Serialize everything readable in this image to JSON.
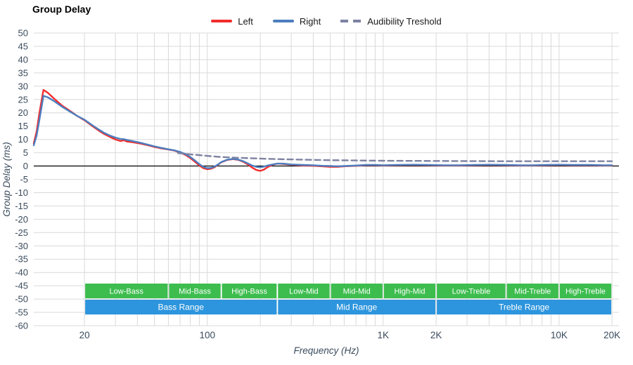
{
  "chart": {
    "title": "Group Delay",
    "xlabel": "Frequency (Hz)",
    "ylabel": "Group Delay (ms)"
  },
  "legend": {
    "left": "Left",
    "right": "Right",
    "threshold": "Audibility Treshold"
  },
  "colors": {
    "left": "#f22c2c",
    "right": "#4d7ebf",
    "threshold": "#7d82a2",
    "grid": "#d9d9d9",
    "zero_line": "#000000",
    "tick_text": "#3a4b5c",
    "band_green": "#3dbd4e",
    "band_blue": "#2d95dd",
    "band_text": "#ffffff"
  },
  "chart_data": {
    "type": "line",
    "x_scale": "log",
    "xlim": [
      10.3,
      21900
    ],
    "ylim": [
      -60,
      50
    ],
    "grid": true,
    "legend_position": "top-center",
    "y_ticks": [
      50,
      45,
      40,
      35,
      30,
      25,
      20,
      15,
      10,
      5,
      0,
      -5,
      -10,
      -15,
      -20,
      -25,
      -30,
      -35,
      -40,
      -45,
      -50,
      -55,
      -60
    ],
    "x_ticks": [
      {
        "value": 20,
        "label": "20"
      },
      {
        "value": 100,
        "label": "100"
      },
      {
        "value": 1000,
        "label": "1K"
      },
      {
        "value": 2000,
        "label": "2K"
      },
      {
        "value": 10000,
        "label": "10K"
      },
      {
        "value": 20000,
        "label": "20K"
      }
    ],
    "series": [
      {
        "name": "Left",
        "color_key": "left",
        "style": "solid",
        "points": [
          [
            10.3,
            8.5
          ],
          [
            10.7,
            13
          ],
          [
            11.1,
            20
          ],
          [
            11.7,
            28.6
          ],
          [
            12.4,
            27.5
          ],
          [
            13.5,
            25.2
          ],
          [
            15,
            22.6
          ],
          [
            16.5,
            20.8
          ],
          [
            18,
            19
          ],
          [
            20,
            17.2
          ],
          [
            22,
            15.2
          ],
          [
            24,
            13.4
          ],
          [
            26,
            12
          ],
          [
            28,
            10.9
          ],
          [
            30,
            10
          ],
          [
            32,
            9.4
          ],
          [
            33.5,
            9.7
          ],
          [
            35,
            9.2
          ],
          [
            38,
            8.9
          ],
          [
            42,
            8.4
          ],
          [
            46,
            7.8
          ],
          [
            50,
            7.2
          ],
          [
            55,
            6.6
          ],
          [
            60,
            6.2
          ],
          [
            65,
            5.8
          ],
          [
            70,
            5.1
          ],
          [
            75,
            4.2
          ],
          [
            80,
            3
          ],
          [
            85,
            1.6
          ],
          [
            90,
            0.2
          ],
          [
            95,
            -0.8
          ],
          [
            100,
            -1.2
          ],
          [
            105,
            -1
          ],
          [
            110,
            -0.4
          ],
          [
            115,
            0.5
          ],
          [
            120,
            1.4
          ],
          [
            130,
            2.3
          ],
          [
            140,
            2.6
          ],
          [
            150,
            2.3
          ],
          [
            160,
            1.6
          ],
          [
            170,
            0.6
          ],
          [
            180,
            -0.6
          ],
          [
            190,
            -1.5
          ],
          [
            200,
            -1.8
          ],
          [
            210,
            -1.3
          ],
          [
            220,
            -0.4
          ],
          [
            235,
            0.5
          ],
          [
            250,
            0.9
          ],
          [
            270,
            0.8
          ],
          [
            300,
            0.5
          ],
          [
            350,
            0.2
          ],
          [
            400,
            0.1
          ],
          [
            450,
            -0.1
          ],
          [
            500,
            -0.3
          ],
          [
            550,
            -0.3
          ],
          [
            600,
            -0.1
          ],
          [
            700,
            0.1
          ],
          [
            800,
            0.3
          ],
          [
            900,
            0.3
          ],
          [
            1000,
            0.2
          ],
          [
            1200,
            0.3
          ],
          [
            1500,
            0.4
          ],
          [
            1800,
            0.3
          ],
          [
            2200,
            0.2
          ],
          [
            2700,
            0.2
          ],
          [
            3300,
            0.3
          ],
          [
            4000,
            0.4
          ],
          [
            5000,
            0.3
          ],
          [
            6000,
            0.2
          ],
          [
            7000,
            0.2
          ],
          [
            8500,
            0.3
          ],
          [
            10000,
            0.4
          ],
          [
            12000,
            0.3
          ],
          [
            15000,
            0.3
          ],
          [
            18000,
            0.2
          ],
          [
            20000,
            0.2
          ]
        ]
      },
      {
        "name": "Right",
        "color_key": "right",
        "style": "solid",
        "points": [
          [
            10.3,
            7.8
          ],
          [
            10.7,
            11.5
          ],
          [
            11.1,
            17.5
          ],
          [
            11.7,
            26.4
          ],
          [
            12.4,
            25.8
          ],
          [
            13.5,
            24.3
          ],
          [
            15,
            22.2
          ],
          [
            16.5,
            20.5
          ],
          [
            18,
            19
          ],
          [
            20,
            17.4
          ],
          [
            22,
            15.5
          ],
          [
            24,
            13.8
          ],
          [
            26,
            12.4
          ],
          [
            28,
            11.4
          ],
          [
            30,
            10.7
          ],
          [
            32,
            10.2
          ],
          [
            33.5,
            10.1
          ],
          [
            35,
            9.8
          ],
          [
            38,
            9.3
          ],
          [
            42,
            8.7
          ],
          [
            46,
            8
          ],
          [
            50,
            7.4
          ],
          [
            55,
            6.8
          ],
          [
            60,
            6.3
          ],
          [
            65,
            5.9
          ],
          [
            70,
            5.3
          ],
          [
            75,
            4.5
          ],
          [
            80,
            3.4
          ],
          [
            85,
            2.1
          ],
          [
            90,
            0.7
          ],
          [
            95,
            -0.3
          ],
          [
            100,
            -0.8
          ],
          [
            105,
            -0.7
          ],
          [
            110,
            -0.2
          ],
          [
            115,
            0.6
          ],
          [
            120,
            1.5
          ],
          [
            130,
            2.4
          ],
          [
            140,
            2.7
          ],
          [
            150,
            2.4
          ],
          [
            160,
            1.8
          ],
          [
            170,
            1
          ],
          [
            180,
            0.2
          ],
          [
            190,
            -0.3
          ],
          [
            200,
            -0.5
          ],
          [
            210,
            -0.2
          ],
          [
            220,
            0.2
          ],
          [
            235,
            0.6
          ],
          [
            250,
            0.9
          ],
          [
            270,
            0.9
          ],
          [
            300,
            0.6
          ],
          [
            350,
            0.4
          ],
          [
            400,
            0.3
          ],
          [
            450,
            0.1
          ],
          [
            500,
            0
          ],
          [
            550,
            -0.1
          ],
          [
            600,
            0
          ],
          [
            700,
            0.2
          ],
          [
            800,
            0.4
          ],
          [
            900,
            0.4
          ],
          [
            1000,
            0.3
          ],
          [
            1200,
            0.4
          ],
          [
            1500,
            0.5
          ],
          [
            1800,
            0.4
          ],
          [
            2200,
            0.3
          ],
          [
            2700,
            0.3
          ],
          [
            3300,
            0.4
          ],
          [
            4000,
            0.5
          ],
          [
            5000,
            0.4
          ],
          [
            6000,
            0.3
          ],
          [
            7000,
            0.3
          ],
          [
            8500,
            0.4
          ],
          [
            10000,
            0.5
          ],
          [
            12000,
            0.4
          ],
          [
            15000,
            0.4
          ],
          [
            18000,
            0.3
          ],
          [
            20000,
            0.3
          ]
        ]
      },
      {
        "name": "Audibility Treshold",
        "color_key": "threshold",
        "style": "dashed",
        "points": [
          [
            68,
            4.9
          ],
          [
            80,
            4.4
          ],
          [
            90,
            4.1
          ],
          [
            100,
            3.8
          ],
          [
            120,
            3.4
          ],
          [
            150,
            3.1
          ],
          [
            200,
            2.8
          ],
          [
            250,
            2.6
          ],
          [
            300,
            2.5
          ],
          [
            400,
            2.3
          ],
          [
            500,
            2.2
          ],
          [
            700,
            2.1
          ],
          [
            1000,
            2
          ],
          [
            1500,
            1.95
          ],
          [
            2000,
            1.9
          ],
          [
            3000,
            1.85
          ],
          [
            5000,
            1.8
          ],
          [
            8000,
            1.8
          ],
          [
            10000,
            1.8
          ],
          [
            15000,
            1.8
          ],
          [
            20000,
            1.8
          ]
        ]
      }
    ],
    "bands": {
      "sub": [
        {
          "label": "Low-Bass",
          "from": 20,
          "to": 60
        },
        {
          "label": "Mid-Bass",
          "from": 60,
          "to": 120
        },
        {
          "label": "High-Bass",
          "from": 120,
          "to": 250
        },
        {
          "label": "Low-Mid",
          "from": 250,
          "to": 500
        },
        {
          "label": "Mid-Mid",
          "from": 500,
          "to": 1000
        },
        {
          "label": "High-Mid",
          "from": 1000,
          "to": 2000
        },
        {
          "label": "Low-Treble",
          "from": 2000,
          "to": 5000
        },
        {
          "label": "Mid-Treble",
          "from": 5000,
          "to": 10000
        },
        {
          "label": "High-Treble",
          "from": 10000,
          "to": 20000
        }
      ],
      "main": [
        {
          "label": "Bass Range",
          "from": 20,
          "to": 250
        },
        {
          "label": "Mid Range",
          "from": 250,
          "to": 2000
        },
        {
          "label": "Treble Range",
          "from": 2000,
          "to": 20000
        }
      ]
    }
  }
}
